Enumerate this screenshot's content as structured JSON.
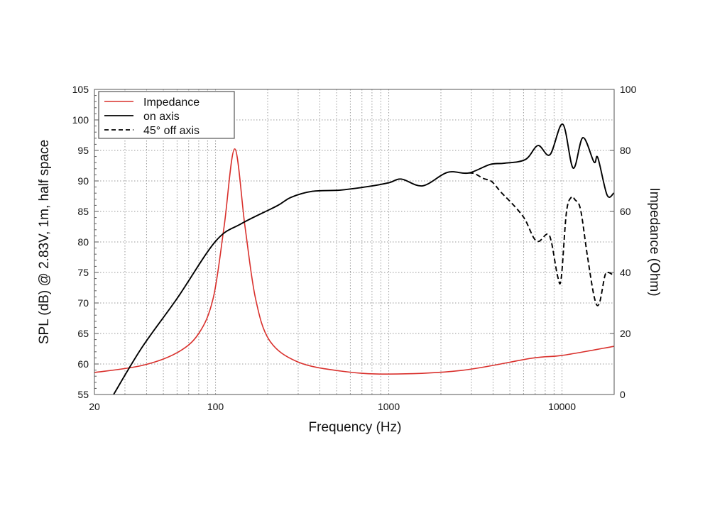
{
  "chart_data": {
    "type": "line",
    "xlabel": "Frequency (Hz)",
    "ylabel": "SPL (dB) @ 2.83V, 1m, half space",
    "y2label": "Impedance (Ohm)",
    "xscale": "log",
    "xlim": [
      20,
      20000
    ],
    "ylim": [
      55,
      105
    ],
    "y2lim": [
      0,
      100
    ],
    "xticks": [
      20,
      100,
      1000,
      10000
    ],
    "xtick_labels": [
      "20",
      "100",
      "1000",
      "10000"
    ],
    "yticks": [
      55,
      60,
      65,
      70,
      75,
      80,
      85,
      90,
      95,
      100,
      105
    ],
    "y2ticks": [
      0,
      20,
      40,
      60,
      80,
      100
    ],
    "grid": true,
    "legend_position": "top-left",
    "series": [
      {
        "name": "Impedance",
        "axis": "right",
        "color": "#d9302c",
        "style": "solid",
        "x": [
          20,
          37.6,
          60,
          80,
          97,
          112,
          129,
          148,
          170,
          205,
          298,
          526,
          1000,
          2630,
          6700,
          10000,
          20000
        ],
        "y": [
          7.2,
          9.5,
          13.7,
          20,
          31.6,
          54.9,
          80.5,
          55,
          31.6,
          17.7,
          10.7,
          7.7,
          6.7,
          7.9,
          11.9,
          12.8,
          15.8
        ]
      },
      {
        "name": "on axis",
        "axis": "left",
        "color": "#000000",
        "style": "solid",
        "x": [
          25.8,
          37.6,
          60.2,
          100,
          141,
          226,
          272,
          363,
          526,
          770,
          1000,
          1185,
          1570,
          2180,
          2890,
          3840,
          4630,
          6140,
          7270,
          8520,
          10100,
          11600,
          13200,
          15300,
          16100,
          18200,
          19900
        ],
        "y": [
          55,
          62.7,
          70.8,
          80.1,
          83.0,
          85.9,
          87.3,
          88.3,
          88.5,
          89.1,
          89.7,
          90.3,
          89.2,
          91.4,
          91.3,
          92.7,
          92.9,
          93.5,
          95.8,
          94.3,
          99.3,
          92.1,
          97.1,
          93.1,
          93.8,
          87.7,
          88.0
        ]
      },
      {
        "name": "45° off axis",
        "axis": "left",
        "color": "#000000",
        "style": "dashed",
        "x": [
          2890,
          3130,
          3520,
          3930,
          4430,
          4990,
          5580,
          6140,
          6860,
          7370,
          8230,
          8700,
          9450,
          9900,
          10600,
          11300,
          11900,
          12800,
          14000,
          15400,
          16400,
          17700,
          18500,
          19900
        ],
        "y": [
          91.3,
          91.2,
          90.4,
          89.9,
          88.2,
          86.7,
          85.2,
          83.6,
          80.7,
          80.1,
          81.3,
          79.9,
          74.3,
          74.1,
          84.8,
          87.3,
          86.9,
          85.3,
          77.8,
          70.8,
          69.9,
          74.5,
          75.0,
          74.5
        ]
      }
    ]
  }
}
